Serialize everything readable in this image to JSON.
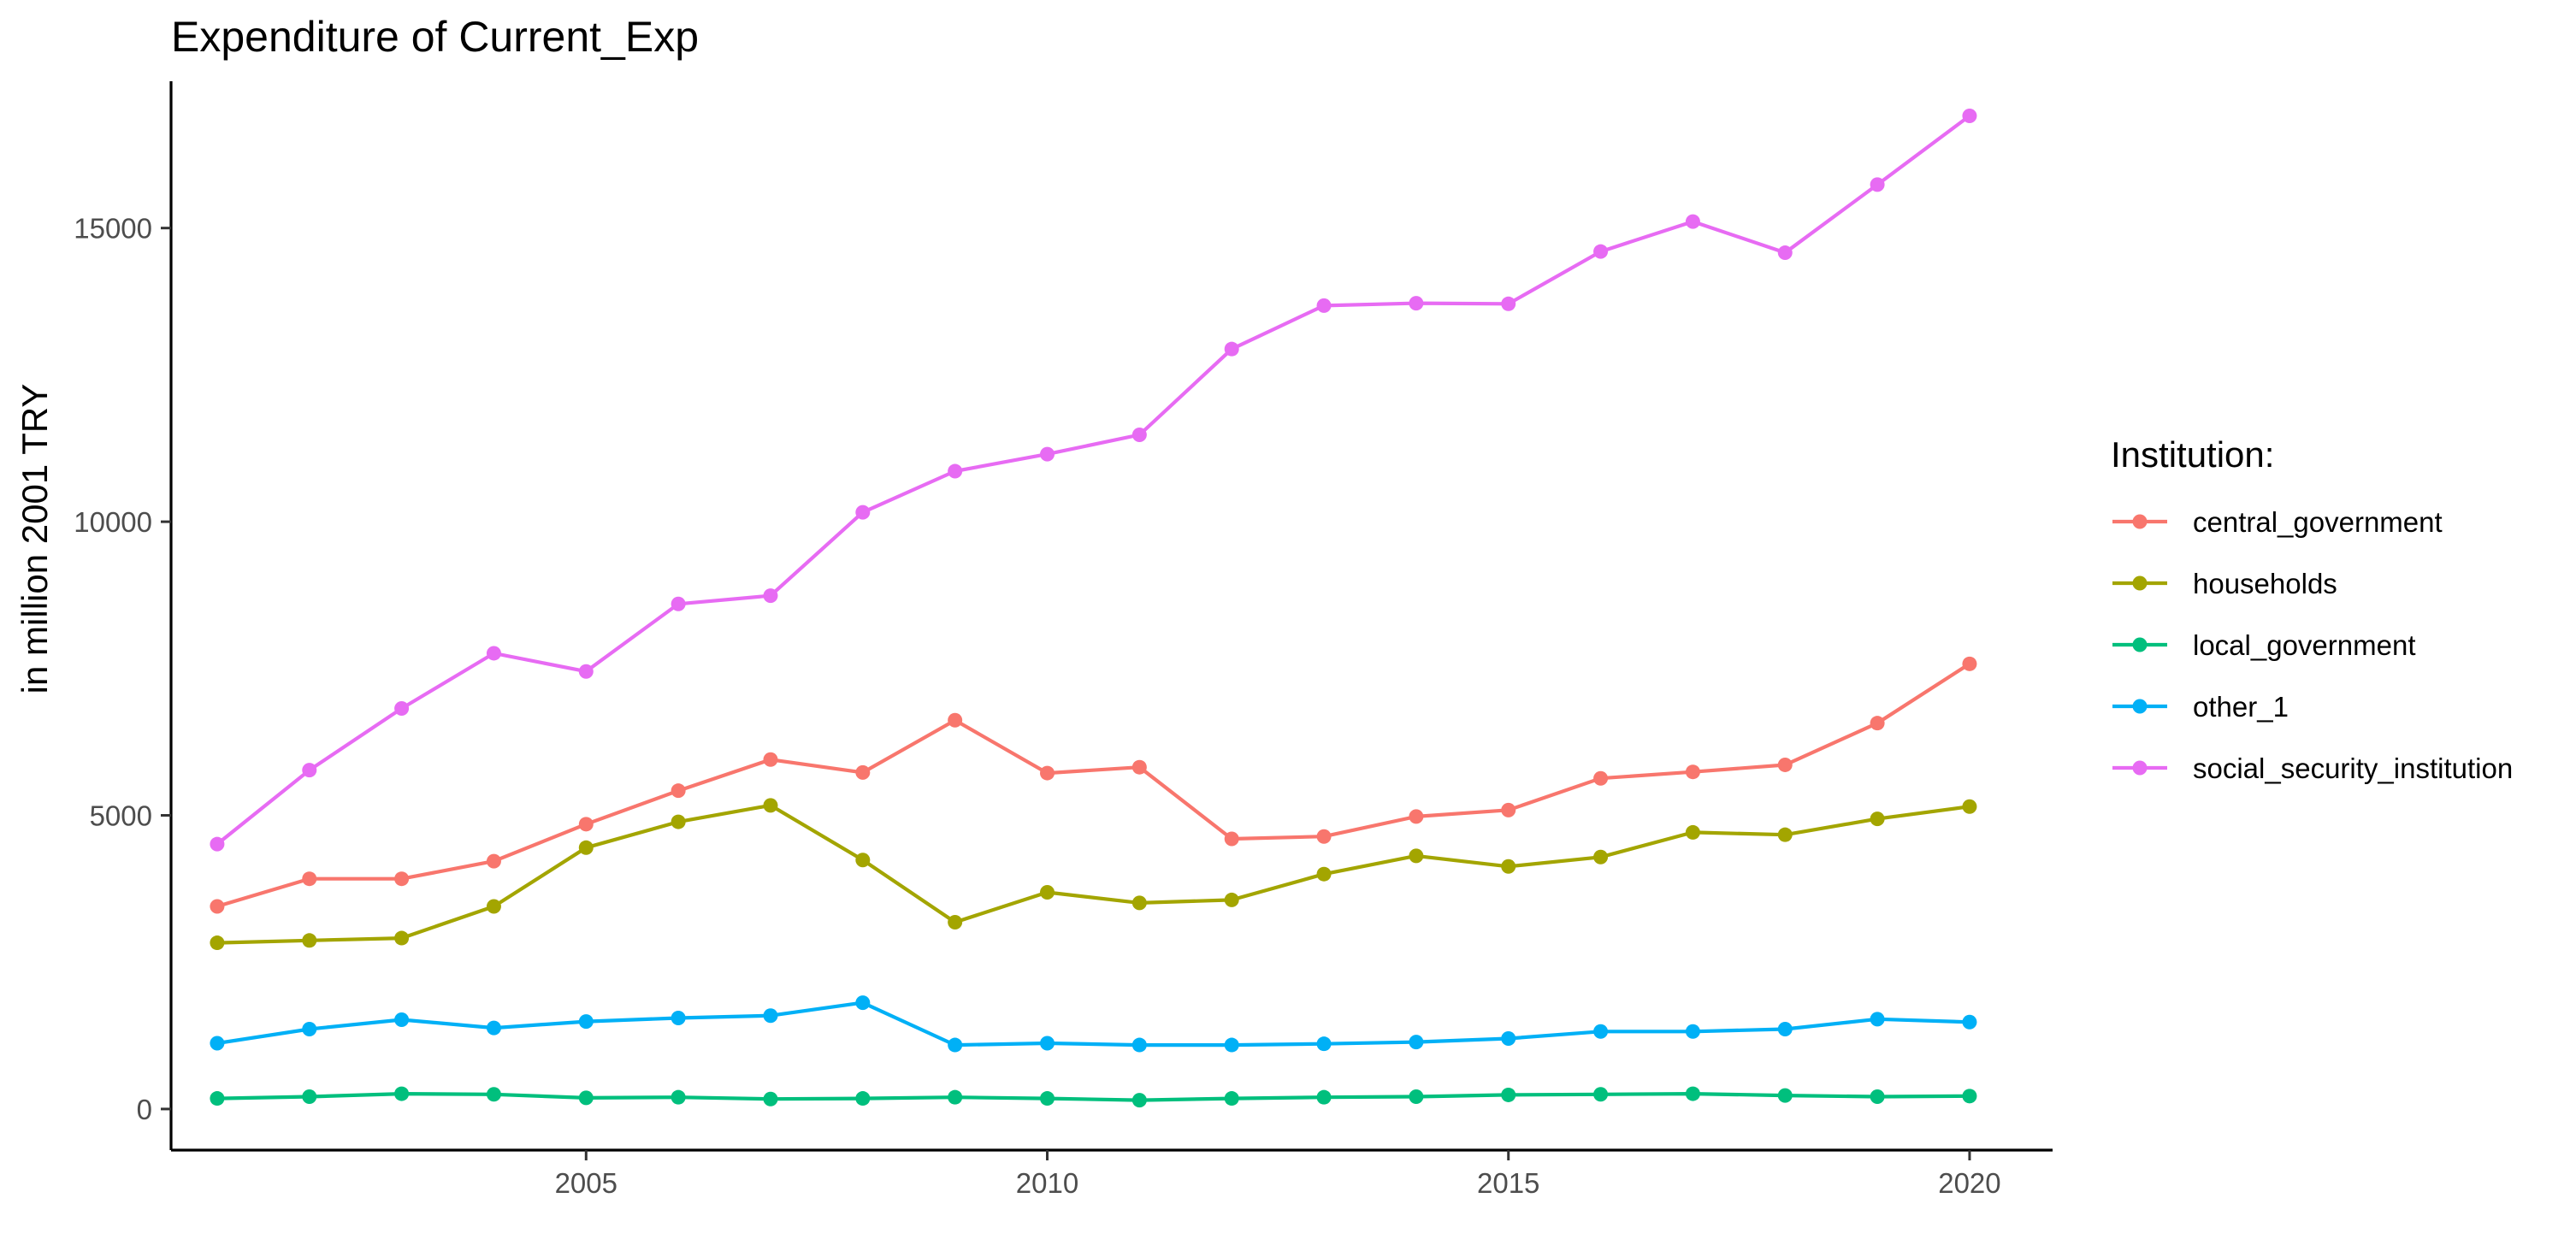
{
  "chart_data": {
    "type": "line",
    "title": "Expenditure of Current_Exp",
    "xlabel": "",
    "ylabel": "in million 2001 TRY",
    "xlim": [
      2000.5,
      2020.9
    ],
    "ylim": [
      -700,
      17500
    ],
    "x_ticks": [
      2005,
      2010,
      2015,
      2020
    ],
    "y_ticks": [
      0,
      5000,
      10000,
      15000
    ],
    "x_tick_labels": [
      "2005",
      "2010",
      "2015",
      "2020"
    ],
    "y_tick_labels": [
      "0",
      "5000",
      "10000",
      "15000"
    ],
    "grid": false,
    "x": [
      2001,
      2002,
      2003,
      2004,
      2005,
      2006,
      2007,
      2008,
      2009,
      2010,
      2011,
      2012,
      2013,
      2014,
      2015,
      2016,
      2017,
      2018,
      2019,
      2020
    ],
    "legend": {
      "title": "Institution:",
      "position": "right"
    },
    "series": [
      {
        "name": "central_government",
        "color": "#F8766D",
        "values": [
          3450,
          3920,
          3920,
          4220,
          4850,
          5420,
          5950,
          5730,
          6620,
          5720,
          5820,
          4600,
          4640,
          4980,
          5090,
          5630,
          5740,
          5860,
          6570,
          7580
        ]
      },
      {
        "name": "households",
        "color": "#A3A500",
        "values": [
          2830,
          2870,
          2910,
          3450,
          4450,
          4890,
          5170,
          4240,
          3180,
          3690,
          3510,
          3560,
          4000,
          4310,
          4130,
          4290,
          4710,
          4670,
          4940,
          5150
        ]
      },
      {
        "name": "local_government",
        "color": "#00BF7D",
        "values": [
          180,
          210,
          260,
          250,
          190,
          200,
          170,
          180,
          200,
          180,
          150,
          180,
          200,
          210,
          240,
          250,
          260,
          230,
          210,
          220
        ]
      },
      {
        "name": "other_1",
        "color": "#00B0F6",
        "values": [
          1120,
          1360,
          1520,
          1380,
          1490,
          1550,
          1590,
          1810,
          1090,
          1120,
          1090,
          1090,
          1110,
          1140,
          1200,
          1320,
          1320,
          1360,
          1530,
          1480
        ]
      },
      {
        "name": "social_security_institution",
        "color": "#E76BF3",
        "values": [
          4510,
          5770,
          6820,
          7760,
          7450,
          8600,
          8740,
          10160,
          10860,
          11150,
          11480,
          12940,
          13680,
          13720,
          13710,
          14600,
          15110,
          14580,
          15740,
          16910
        ]
      }
    ]
  }
}
